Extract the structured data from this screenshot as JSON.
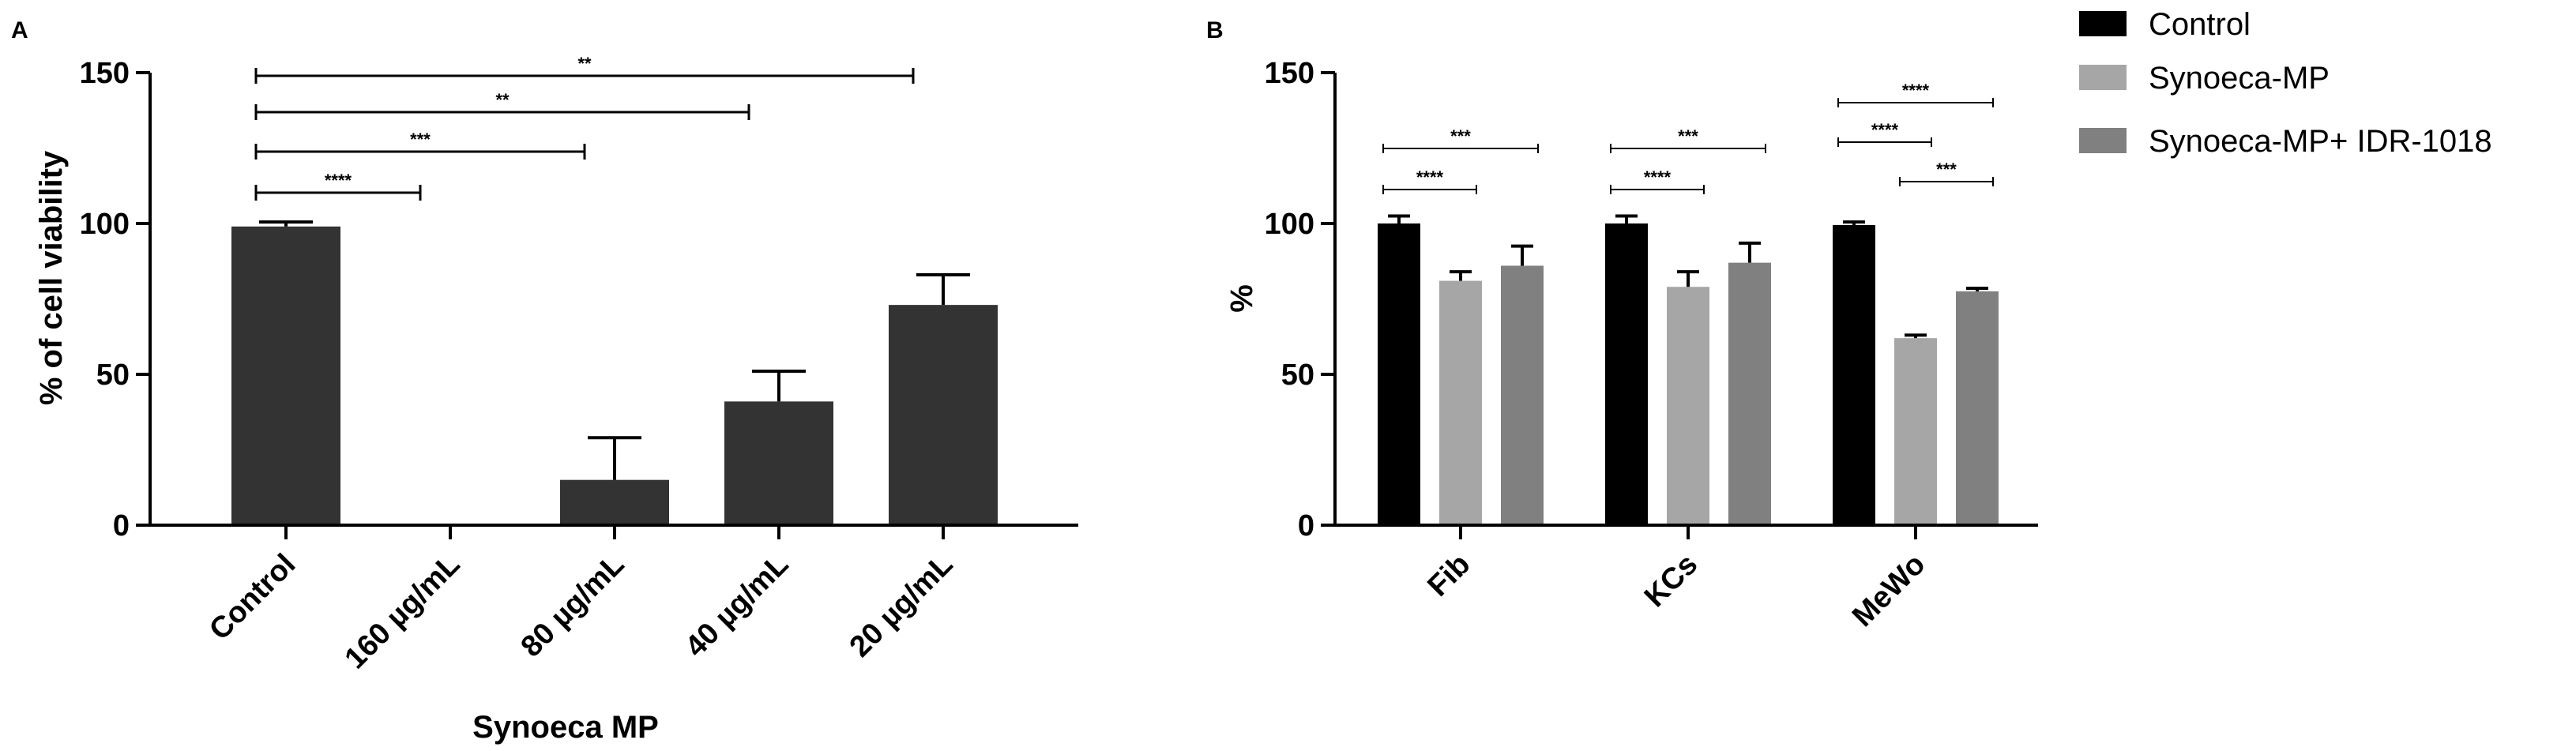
{
  "chart_data": [
    {
      "panel": "A",
      "type": "bar",
      "categories": [
        "Control",
        "160 µg/mL",
        "80 µg/mL",
        "40 µg/mL",
        "20 µg/mL"
      ],
      "values": [
        99,
        0.5,
        15,
        41,
        73
      ],
      "errors": [
        1.5,
        0,
        14,
        10,
        10
      ],
      "bar_color": "#333333",
      "xlabel": "Synoeca MP",
      "ylabel": "% of cell viability",
      "ylim": [
        0,
        150
      ],
      "yticks": [
        "0",
        "50",
        "100",
        "150"
      ],
      "significance": [
        {
          "from": 0,
          "to": 1,
          "label": "****"
        },
        {
          "from": 0,
          "to": 2,
          "label": "***"
        },
        {
          "from": 0,
          "to": 3,
          "label": "**"
        },
        {
          "from": 0,
          "to": 4,
          "label": "**"
        }
      ]
    },
    {
      "panel": "B",
      "type": "bar",
      "categories": [
        "Fib",
        "KCs",
        "MeWo"
      ],
      "series": [
        {
          "name": "Control",
          "color": "#000000",
          "values": [
            100,
            100,
            99.5
          ],
          "errors": [
            2.5,
            2.5,
            1
          ]
        },
        {
          "name": "Synoeca-MP",
          "color": "#a6a6a6",
          "values": [
            81,
            79,
            62
          ],
          "errors": [
            3,
            5,
            1
          ]
        },
        {
          "name": "Synoeca-MP+ IDR-1018",
          "color": "#808080",
          "values": [
            86,
            87,
            77.5
          ],
          "errors": [
            6.5,
            6.5,
            1
          ]
        }
      ],
      "xlabel": "",
      "ylabel": "%",
      "ylim": [
        0,
        150
      ],
      "yticks": [
        "0",
        "50",
        "100",
        "150"
      ],
      "significance": [
        {
          "group": 0,
          "from": 0,
          "to": 1,
          "label": "****"
        },
        {
          "group": 0,
          "from": 0,
          "to": 2,
          "label": "***"
        },
        {
          "group": 1,
          "from": 0,
          "to": 1,
          "label": "****"
        },
        {
          "group": 1,
          "from": 0,
          "to": 2,
          "label": "***"
        },
        {
          "group": 2,
          "from": 1,
          "to": 2,
          "label": "***"
        },
        {
          "group": 2,
          "from": 0,
          "to": 1,
          "label": "****"
        },
        {
          "group": 2,
          "from": 0,
          "to": 2,
          "label": "****"
        }
      ],
      "legend_position": "top-right"
    }
  ]
}
